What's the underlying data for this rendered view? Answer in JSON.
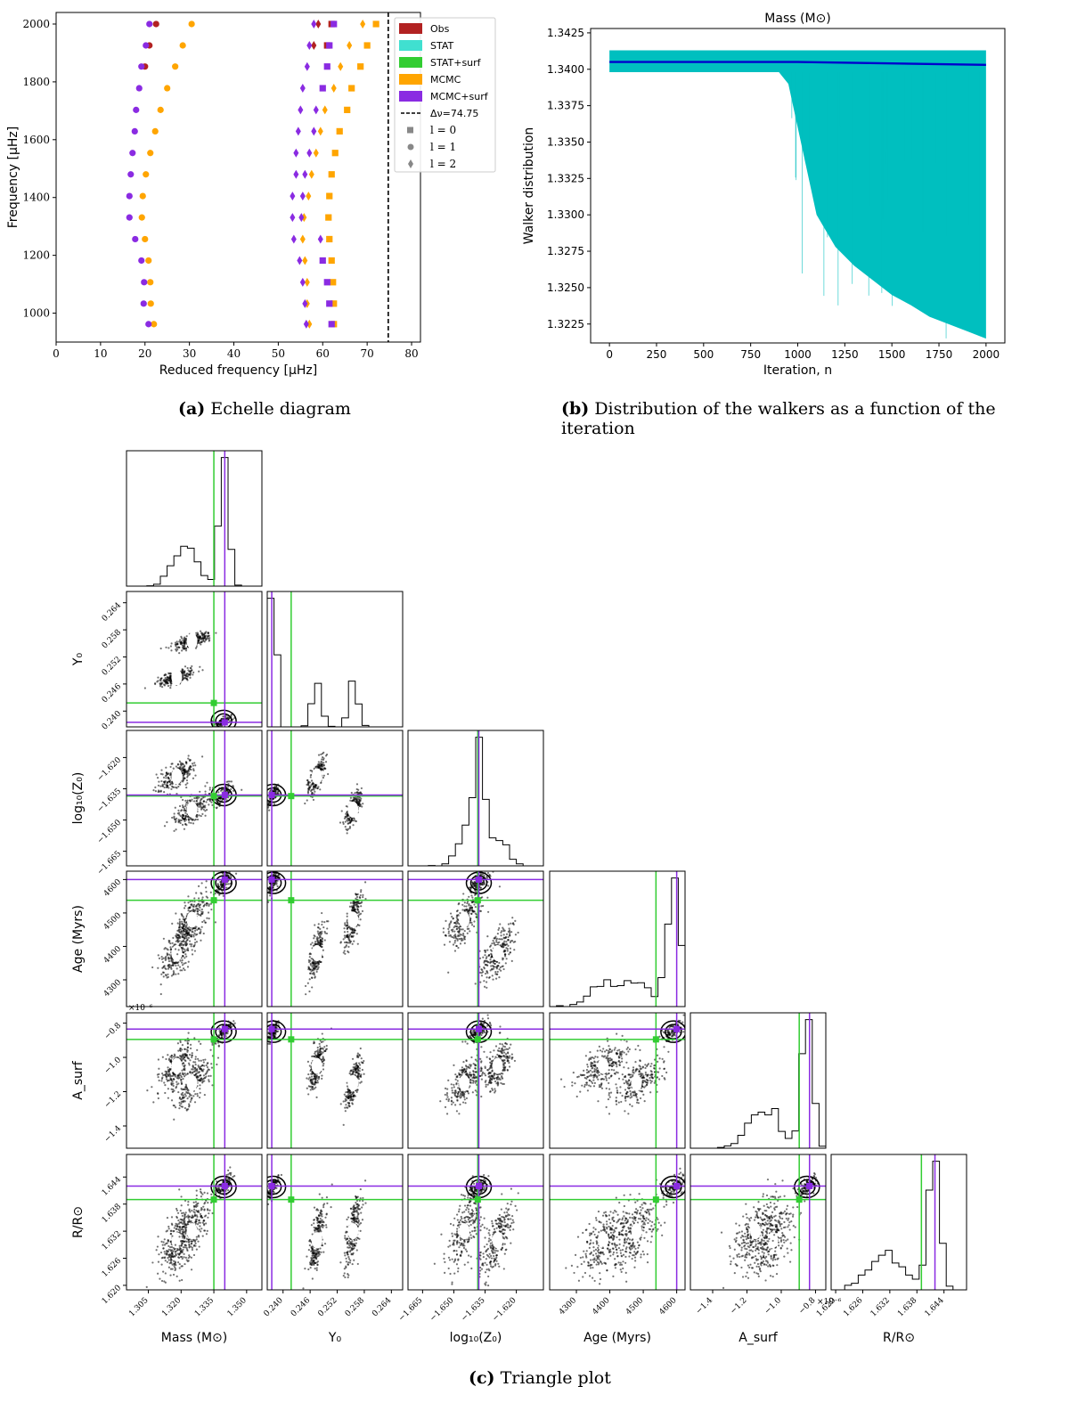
{
  "captions": {
    "a_label": "(a)",
    "a_text": "Echelle diagram",
    "b_label": "(b)",
    "b_text": "Distribution of the walkers as a function of the iteration",
    "c_label": "(c)",
    "c_text": "Triangle plot"
  },
  "chart_data": [
    {
      "type": "scatter",
      "id": "echelle",
      "xlabel": "Reduced frequency [μHz]",
      "ylabel": "Frequency [μHz]",
      "xlim": [
        0,
        82
      ],
      "ylim": [
        900,
        2040
      ],
      "xticks": [
        0,
        10,
        20,
        30,
        40,
        50,
        60,
        70,
        80
      ],
      "yticks": [
        1000,
        1200,
        1400,
        1600,
        1800,
        2000
      ],
      "vline": {
        "x": 74.75,
        "label": "Δν=74.75"
      },
      "legend": {
        "placement": "top-right",
        "entries": [
          {
            "label": "Obs",
            "color": "#b22222",
            "kind": "patch"
          },
          {
            "label": "STAT",
            "color": "#40e0d0",
            "kind": "patch"
          },
          {
            "label": "STAT+surf",
            "color": "#32cd32",
            "kind": "patch"
          },
          {
            "label": "MCMC",
            "color": "#ffa500",
            "kind": "patch"
          },
          {
            "label": "MCMC+surf",
            "color": "#8a2be2",
            "kind": "patch"
          },
          {
            "label": "Δν=74.75",
            "color": "#000000",
            "kind": "dash"
          },
          {
            "label": "l = 0",
            "color": "#888888",
            "kind": "square"
          },
          {
            "label": "l = 1",
            "color": "#888888",
            "kind": "circle"
          },
          {
            "label": "l = 2",
            "color": "#888888",
            "kind": "diamond"
          }
        ]
      },
      "series": [
        {
          "name": "Obs",
          "color": "#b22222",
          "points": [
            [
              22.5,
              2000
            ],
            [
              21,
              1926
            ],
            [
              20,
              1853
            ],
            [
              62,
              2000
            ],
            [
              61,
              1926
            ],
            [
              59,
              2000
            ],
            [
              58,
              1926
            ]
          ]
        },
        {
          "name": "MCMC",
          "color": "#ffa500",
          "points": [
            [
              30.5,
              2000
            ],
            [
              28.5,
              1926
            ],
            [
              26.8,
              1853
            ],
            [
              25,
              1778
            ],
            [
              23.5,
              1703
            ],
            [
              22.3,
              1629
            ],
            [
              21.2,
              1554
            ],
            [
              20.2,
              1480
            ],
            [
              19.5,
              1405
            ],
            [
              19.3,
              1331
            ],
            [
              20,
              1256
            ],
            [
              20.8,
              1182
            ],
            [
              21.2,
              1107
            ],
            [
              21.3,
              1033
            ],
            [
              22,
              962
            ],
            [
              72,
              2000
            ],
            [
              70,
              1926
            ],
            [
              68.5,
              1853
            ],
            [
              66.5,
              1778
            ],
            [
              65.5,
              1703
            ],
            [
              63.8,
              1629
            ],
            [
              62.8,
              1554
            ],
            [
              62,
              1480
            ],
            [
              61.5,
              1405
            ],
            [
              61.3,
              1331
            ],
            [
              61.5,
              1256
            ],
            [
              62,
              1182
            ],
            [
              62.3,
              1107
            ],
            [
              62.5,
              1033
            ],
            [
              62.5,
              962
            ],
            [
              69,
              2000
            ],
            [
              66,
              1926
            ],
            [
              64,
              1853
            ],
            [
              62.5,
              1778
            ],
            [
              60.5,
              1703
            ],
            [
              59.5,
              1629
            ],
            [
              58.5,
              1554
            ],
            [
              57.5,
              1480
            ],
            [
              56.8,
              1405
            ],
            [
              55.8,
              1331
            ],
            [
              55.5,
              1256
            ],
            [
              56,
              1182
            ],
            [
              56.5,
              1107
            ],
            [
              56.5,
              1033
            ],
            [
              57,
              962
            ]
          ]
        },
        {
          "name": "MCMC+surf",
          "color": "#8a2be2",
          "points": [
            [
              21,
              2000
            ],
            [
              20.2,
              1926
            ],
            [
              19.2,
              1853
            ],
            [
              18.7,
              1778
            ],
            [
              18,
              1703
            ],
            [
              17.7,
              1629
            ],
            [
              17.2,
              1554
            ],
            [
              16.8,
              1480
            ],
            [
              16.5,
              1405
            ],
            [
              16.5,
              1331
            ],
            [
              17.8,
              1256
            ],
            [
              19.2,
              1182
            ],
            [
              19.8,
              1107
            ],
            [
              19.7,
              1033
            ],
            [
              20.8,
              962
            ],
            [
              62.5,
              2000
            ],
            [
              61.5,
              1926
            ],
            [
              61,
              1853
            ],
            [
              60,
              1778
            ],
            [
              58.5,
              1703
            ],
            [
              58,
              1629
            ],
            [
              57,
              1554
            ],
            [
              56,
              1480
            ],
            [
              55.5,
              1405
            ],
            [
              55.2,
              1331
            ],
            [
              59.5,
              1256
            ],
            [
              60,
              1182
            ],
            [
              61,
              1107
            ],
            [
              61.5,
              1033
            ],
            [
              62,
              962
            ],
            [
              58,
              2000
            ],
            [
              57,
              1926
            ],
            [
              56.5,
              1853
            ],
            [
              55.5,
              1778
            ],
            [
              55,
              1703
            ],
            [
              54.5,
              1629
            ],
            [
              54,
              1554
            ],
            [
              54,
              1480
            ],
            [
              53.2,
              1405
            ],
            [
              53.2,
              1331
            ],
            [
              53.5,
              1256
            ],
            [
              54.8,
              1182
            ],
            [
              55.5,
              1107
            ],
            [
              56,
              1033
            ],
            [
              56.3,
              962
            ]
          ]
        }
      ]
    },
    {
      "type": "area",
      "id": "walkers",
      "title": "Mass (M⊙)",
      "xlabel": "Iteration, n",
      "ylabel": "Walker distribution",
      "xlim": [
        -100,
        2100
      ],
      "ylim": [
        1.3212,
        1.3428
      ],
      "xticks": [
        0,
        250,
        500,
        750,
        1000,
        1250,
        1500,
        1750,
        2000
      ],
      "yticks": [
        "1.3225",
        "1.3250",
        "1.3275",
        "1.3300",
        "1.3325",
        "1.3350",
        "1.3375",
        "1.3400",
        "1.3425"
      ],
      "band_color": "#00bfbf",
      "median_color": "#0000cd",
      "band_upper": 1.3413,
      "band_lower_x": [
        0,
        900,
        950,
        1100,
        1200,
        1300,
        1400,
        1500,
        1600,
        1700,
        1800,
        1900,
        2000
      ],
      "band_lower_y": [
        1.3398,
        1.3398,
        1.339,
        1.33,
        1.3278,
        1.3265,
        1.3255,
        1.3245,
        1.3238,
        1.323,
        1.3225,
        1.322,
        1.3215
      ],
      "median_x": [
        0,
        500,
        1000,
        1500,
        2000
      ],
      "median_y": [
        1.3405,
        1.3405,
        1.3405,
        1.3404,
        1.3403
      ]
    },
    {
      "type": "scatter",
      "id": "triangle",
      "note": "corner plot",
      "params": [
        {
          "label": "Mass (M⊙)",
          "ticks": [
            "1.305",
            "1.320",
            "1.335",
            "1.350"
          ],
          "range": [
            1.295,
            1.357
          ]
        },
        {
          "label": "Y₀",
          "ticks": [
            "0.240",
            "0.246",
            "0.252",
            "0.258",
            "0.264"
          ],
          "range": [
            0.2365,
            0.2665
          ]
        },
        {
          "label": "log₁₀(Z₀)",
          "ticks": [
            "−1.665",
            "−1.650",
            "−1.635",
            "−1.620"
          ],
          "range": [
            -1.672,
            -1.607
          ]
        },
        {
          "label": "Age (Myrs)",
          "ticks": [
            "4300",
            "4400",
            "4500",
            "4600"
          ],
          "range": [
            4220,
            4625
          ]
        },
        {
          "label": "A_surf",
          "ticks": [
            "−1.4",
            "−1.2",
            "−1.0",
            "−0.8"
          ],
          "range": [
            -1.53,
            -0.74
          ],
          "multiplier": "×10⁻⁶"
        },
        {
          "label": "R/R⊙",
          "ticks": [
            "1.620",
            "1.626",
            "1.632",
            "1.638",
            "1.644"
          ],
          "range": [
            1.619,
            1.649
          ]
        }
      ],
      "truth_green": [
        1.335,
        0.2418,
        -1.6385,
        4538,
        -0.895,
        1.639
      ],
      "truth_purple": [
        1.34,
        0.2375,
        -1.638,
        4600,
        -0.835,
        1.642
      ],
      "colors": {
        "green": "#32cd32",
        "purple": "#8a2be2",
        "points": "#000000"
      }
    }
  ]
}
